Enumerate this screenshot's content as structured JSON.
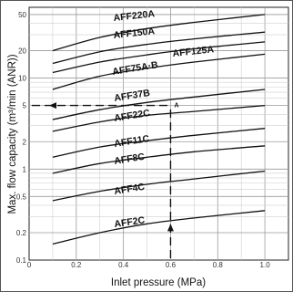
{
  "chart_data": {
    "type": "line",
    "title": "",
    "xlabel": "Inlet pressure (MPa)",
    "ylabel": "Max. flow capacity (m³/min (ANR))",
    "xlim": [
      0,
      1.1
    ],
    "ylim": [
      0.1,
      60
    ],
    "y_scale": "log",
    "grid": true,
    "x_ticks": [
      "0",
      "0.2",
      "0.4",
      "0.6",
      "0.8",
      "1.0"
    ],
    "y_ticks": [
      {
        "value": 50,
        "label": "50"
      },
      {
        "value": 20,
        "label": "20"
      },
      {
        "value": 10,
        "label": "10"
      },
      {
        "value": 5,
        "label": "5"
      },
      {
        "value": 2,
        "label": "2"
      },
      {
        "value": 1,
        "label": "1"
      },
      {
        "value": 0.5,
        "label": "0.5"
      },
      {
        "value": 0.2,
        "label": "0.2"
      },
      {
        "value": 0.1,
        "label": "0.1"
      }
    ],
    "series": [
      {
        "name": "AFF220A",
        "x": [
          0.1,
          0.3,
          0.5,
          0.7,
          1.0
        ],
        "values": [
          20,
          28,
          35,
          41,
          50
        ]
      },
      {
        "name": "AFF150A",
        "x": [
          0.1,
          0.3,
          0.5,
          0.7,
          1.0
        ],
        "values": [
          14.5,
          19.5,
          23.5,
          27,
          32
        ]
      },
      {
        "name": "AFF125A",
        "x": [
          0.1,
          0.3,
          0.5,
          0.7,
          1.0
        ],
        "values": [
          11.5,
          15,
          18,
          21,
          25
        ]
      },
      {
        "name": "AFF75A·B",
        "x": [
          0.1,
          0.3,
          0.5,
          0.7,
          1.0
        ],
        "values": [
          7.5,
          10.5,
          12.8,
          15,
          18.3
        ]
      },
      {
        "name": "AFF37B",
        "x": [
          0.1,
          0.3,
          0.5,
          0.7,
          1.0
        ],
        "values": [
          3.5,
          4.5,
          5.4,
          6.2,
          7.5
        ]
      },
      {
        "name": "AFF22C",
        "x": [
          0.1,
          0.3,
          0.5,
          0.7,
          1.0
        ],
        "values": [
          2.6,
          3.3,
          3.9,
          4.3,
          5.0
        ]
      },
      {
        "name": "AFF11C",
        "x": [
          0.1,
          0.3,
          0.5,
          0.7,
          1.0
        ],
        "values": [
          1.35,
          1.75,
          2.05,
          2.35,
          2.8
        ]
      },
      {
        "name": "AFF8C",
        "x": [
          0.1,
          0.3,
          0.5,
          0.7,
          1.0
        ],
        "values": [
          0.9,
          1.15,
          1.35,
          1.55,
          1.8
        ]
      },
      {
        "name": "AFF4C",
        "x": [
          0.1,
          0.3,
          0.5,
          0.7,
          1.0
        ],
        "values": [
          0.45,
          0.57,
          0.68,
          0.78,
          0.95
        ]
      },
      {
        "name": "AFF2C",
        "x": [
          0.1,
          0.3,
          0.5,
          0.7,
          1.0
        ],
        "values": [
          0.15,
          0.2,
          0.25,
          0.29,
          0.35
        ]
      }
    ],
    "annotations": [
      {
        "label": "A",
        "x": 0.6,
        "y": 5,
        "note": "dashed guide lines with arrows from x=0.6 MPa up and across to y=5"
      }
    ]
  }
}
